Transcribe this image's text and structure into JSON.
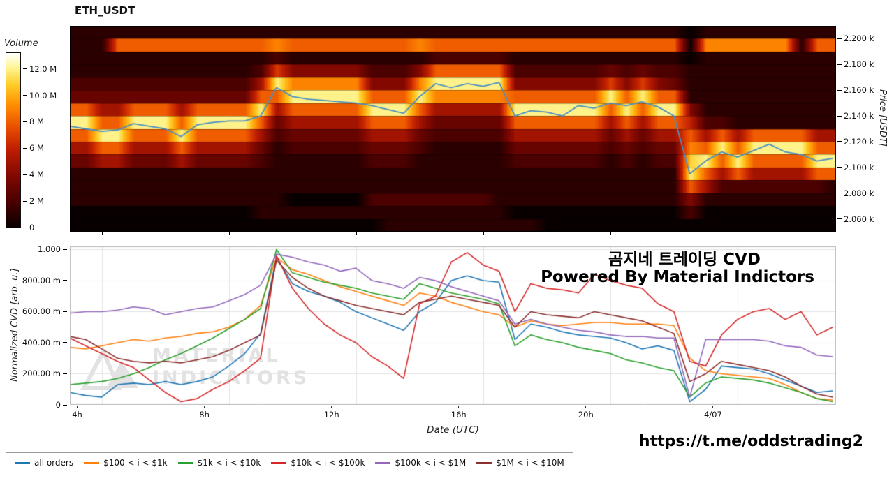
{
  "title": "ETH_USDT",
  "annotations": {
    "cvd_title_korean": "곰지네 트레이딩 CVD",
    "powered_by": "Powered By Material Indictors",
    "url": "https://t.me/oddstrading2",
    "watermark_line1": "MATERIAL",
    "watermark_line2": "INDICATORS"
  },
  "chart_data": [
    {
      "type": "heatmap",
      "title": "ETH_USDT",
      "x_domain": [
        3.0,
        27.1
      ],
      "x_start": 3.0,
      "x_step": 0.5,
      "yaxis_right_label": "Price [USDT]",
      "price_domain": [
        2050,
        2210
      ],
      "price_ticks": [
        {
          "label": "2.200 k",
          "value": 2200
        },
        {
          "label": "2.180 k",
          "value": 2180
        },
        {
          "label": "2.160 k",
          "value": 2160
        },
        {
          "label": "2.140 k",
          "value": 2140
        },
        {
          "label": "2.120 k",
          "value": 2120
        },
        {
          "label": "2.100 k",
          "value": 2100
        },
        {
          "label": "2.080 k",
          "value": 2080
        },
        {
          "label": "2.060 k",
          "value": 2060
        }
      ],
      "colorbar": {
        "label": "Volume",
        "unit": "M",
        "value_max": 13.2,
        "ticks": [
          {
            "label": "12.0 M",
            "value": 12
          },
          {
            "label": "10.0 M",
            "value": 10
          },
          {
            "label": "8 M",
            "value": 8
          },
          {
            "label": "6 M",
            "value": 6
          },
          {
            "label": "4 M",
            "value": 4
          },
          {
            "label": "2 M",
            "value": 2
          },
          {
            "label": "0",
            "value": 0
          }
        ]
      },
      "heatmap": {
        "description": "volume per price bucket over time; hex digit 0-D = volume in millions; rows top(2200-2210) to bottom(2050-2060), 10 USDT per row; 49 columns at 0.5h from 03:00",
        "n_columns": 49,
        "price_bucket_size": 10,
        "rows_top_to_bottom": [
          [
            "1111111111",
            "1111111111",
            "1111111111",
            "1111111110",
            "111111111"
          ],
          [
            "1118888888",
            "8889888888",
            "8898888888",
            "8888888880",
            "999999188"
          ],
          [
            "1111111111",
            "1112111111",
            "1112222211",
            "1111111110",
            "111111111"
          ],
          [
            "1111111111",
            "1127444442",
            "2248888822",
            "2222323221",
            "111111111"
          ],
          [
            "2222222222",
            "225C999994",
            "449CCCCC44",
            "4444747431",
            "111111111"
          ],
          [
            "3333333333",
            "3388CCCCC8",
            "88C9999988",
            "8888C8C881",
            "111111111"
          ],
          [
            "8855888588",
            "88C588888C",
            "CC855555CC",
            "CCCC8C8CC4",
            "111111111"
          ],
          [
            "CC88CCC8CC",
            "CC83555558",
            "8853333388",
            "8888585886",
            "221111111"
          ],
          [
            "88CC888C88",
            "8852333335",
            "5532222255",
            "5555353558",
            "585888855"
          ],
          [
            "5588555855",
            "5531222223",
            "3321111133",
            "3333232339",
            "8C8CCCC88"
          ],
          [
            "3355333533",
            "3321111112",
            "2211111122",
            "222212122B",
            "C8C8888CC"
          ],
          [
            "1111111111",
            "1111111111",
            "1111111111",
            "111111111C",
            "858555588"
          ],
          [
            "1111111111",
            "1111111111",
            "1111111111",
            "1111111118",
            "522222221"
          ],
          [
            "1111111111",
            "1111000002",
            "2222222111",
            "1111111114",
            "111111111"
          ],
          [
            "0000000000",
            "0011111111",
            "1111111100",
            "0000000002",
            "000000000"
          ],
          [
            "0000000000",
            "0000000000",
            "1111111111",
            "0000000000",
            "000000000"
          ]
        ]
      },
      "price_line": {
        "color": "#4a8fc7",
        "values": [
          2132,
          2130,
          2128,
          2129,
          2134,
          2132,
          2130,
          2124,
          2133,
          2135,
          2136,
          2136,
          2140,
          2162,
          2155,
          2153,
          2152,
          2151,
          2150,
          2148,
          2145,
          2142,
          2155,
          2165,
          2162,
          2165,
          2163,
          2166,
          2140,
          2144,
          2143,
          2140,
          2148,
          2146,
          2150,
          2148,
          2151,
          2147,
          2140,
          2095,
          2105,
          2112,
          2108,
          2113,
          2118,
          2112,
          2110,
          2105,
          2107
        ]
      }
    },
    {
      "type": "line",
      "xlabel": "Date (UTC)",
      "ylabel": "Normalized CVD [arb. u.]",
      "ylim": [
        0,
        1.02
      ],
      "grid": true,
      "legend_position": "bottom-left",
      "yticks": [
        {
          "label": "1.000",
          "value": 1.0
        },
        {
          "label": "800.00 m",
          "value": 0.8
        },
        {
          "label": "600.00 m",
          "value": 0.6
        },
        {
          "label": "400.00 m",
          "value": 0.4
        },
        {
          "label": "200.00 m",
          "value": 0.2
        },
        {
          "label": "0",
          "value": 0
        }
      ],
      "xticks": [
        {
          "label": "4h",
          "value": 4
        },
        {
          "label": "8h",
          "value": 8
        },
        {
          "label": "12h",
          "value": 12
        },
        {
          "label": "16h",
          "value": 16
        },
        {
          "label": "20h",
          "value": 20
        },
        {
          "label": "4/07",
          "value": 24
        }
      ],
      "x_start": 3.0,
      "x_step": 0.5,
      "series": [
        {
          "name": "all orders",
          "color": "#1f77b4",
          "values": [
            0.08,
            0.06,
            0.05,
            0.13,
            0.14,
            0.13,
            0.15,
            0.13,
            0.15,
            0.18,
            0.25,
            0.33,
            0.46,
            0.95,
            0.78,
            0.73,
            0.7,
            0.66,
            0.6,
            0.56,
            0.52,
            0.48,
            0.6,
            0.66,
            0.8,
            0.83,
            0.8,
            0.79,
            0.42,
            0.52,
            0.5,
            0.47,
            0.45,
            0.44,
            0.43,
            0.4,
            0.36,
            0.38,
            0.35,
            0.02,
            0.1,
            0.25,
            0.24,
            0.23,
            0.2,
            0.16,
            0.12,
            0.08,
            0.09
          ]
        },
        {
          "name": "$100 < i < $1k",
          "color": "#ff7f0e",
          "values": [
            0.37,
            0.36,
            0.38,
            0.4,
            0.42,
            0.41,
            0.43,
            0.44,
            0.46,
            0.47,
            0.5,
            0.55,
            0.64,
            0.95,
            0.87,
            0.84,
            0.8,
            0.76,
            0.73,
            0.7,
            0.67,
            0.64,
            0.72,
            0.7,
            0.66,
            0.63,
            0.6,
            0.58,
            0.5,
            0.54,
            0.52,
            0.51,
            0.52,
            0.53,
            0.53,
            0.52,
            0.52,
            0.52,
            0.51,
            0.3,
            0.22,
            0.2,
            0.19,
            0.18,
            0.17,
            0.13,
            0.08,
            0.04,
            0.03
          ]
        },
        {
          "name": "$1k < i < $10k",
          "color": "#2ca02c",
          "values": [
            0.13,
            0.14,
            0.15,
            0.17,
            0.2,
            0.24,
            0.29,
            0.33,
            0.38,
            0.43,
            0.49,
            0.55,
            0.62,
            1.0,
            0.85,
            0.82,
            0.79,
            0.77,
            0.75,
            0.72,
            0.7,
            0.68,
            0.78,
            0.75,
            0.72,
            0.7,
            0.68,
            0.65,
            0.38,
            0.45,
            0.42,
            0.4,
            0.37,
            0.35,
            0.33,
            0.29,
            0.27,
            0.24,
            0.22,
            0.05,
            0.14,
            0.18,
            0.17,
            0.16,
            0.14,
            0.11,
            0.08,
            0.04,
            0.02
          ]
        },
        {
          "name": "$10k < i < $100k",
          "color": "#d62728",
          "values": [
            0.43,
            0.38,
            0.33,
            0.28,
            0.24,
            0.16,
            0.08,
            0.02,
            0.04,
            0.1,
            0.15,
            0.22,
            0.3,
            0.96,
            0.75,
            0.62,
            0.52,
            0.45,
            0.4,
            0.31,
            0.25,
            0.17,
            0.65,
            0.7,
            0.92,
            0.98,
            0.9,
            0.86,
            0.6,
            0.78,
            0.75,
            0.74,
            0.72,
            0.84,
            0.8,
            0.77,
            0.75,
            0.65,
            0.6,
            0.28,
            0.25,
            0.45,
            0.55,
            0.6,
            0.62,
            0.55,
            0.6,
            0.45,
            0.5
          ]
        },
        {
          "name": "$100k < i < $1M",
          "color": "#9467bd",
          "values": [
            0.59,
            0.6,
            0.6,
            0.61,
            0.63,
            0.62,
            0.58,
            0.6,
            0.62,
            0.63,
            0.67,
            0.71,
            0.77,
            0.97,
            0.95,
            0.92,
            0.9,
            0.86,
            0.88,
            0.8,
            0.78,
            0.75,
            0.82,
            0.8,
            0.76,
            0.73,
            0.7,
            0.67,
            0.52,
            0.55,
            0.52,
            0.5,
            0.48,
            0.47,
            0.45,
            0.44,
            0.44,
            0.43,
            0.43,
            0.05,
            0.42,
            0.42,
            0.42,
            0.42,
            0.41,
            0.38,
            0.37,
            0.32,
            0.31
          ]
        },
        {
          "name": "$1M < i < $10M",
          "color": "#8b2f2f",
          "values": [
            0.44,
            0.42,
            0.36,
            0.3,
            0.28,
            0.27,
            0.28,
            0.27,
            0.29,
            0.31,
            0.35,
            0.4,
            0.45,
            0.93,
            0.82,
            0.75,
            0.7,
            0.67,
            0.64,
            0.62,
            0.6,
            0.58,
            0.66,
            0.68,
            0.7,
            0.68,
            0.66,
            0.64,
            0.5,
            0.6,
            0.58,
            0.57,
            0.56,
            0.6,
            0.58,
            0.56,
            0.54,
            0.5,
            0.46,
            0.15,
            0.2,
            0.28,
            0.26,
            0.24,
            0.22,
            0.18,
            0.12,
            0.07,
            0.05
          ]
        }
      ]
    }
  ]
}
